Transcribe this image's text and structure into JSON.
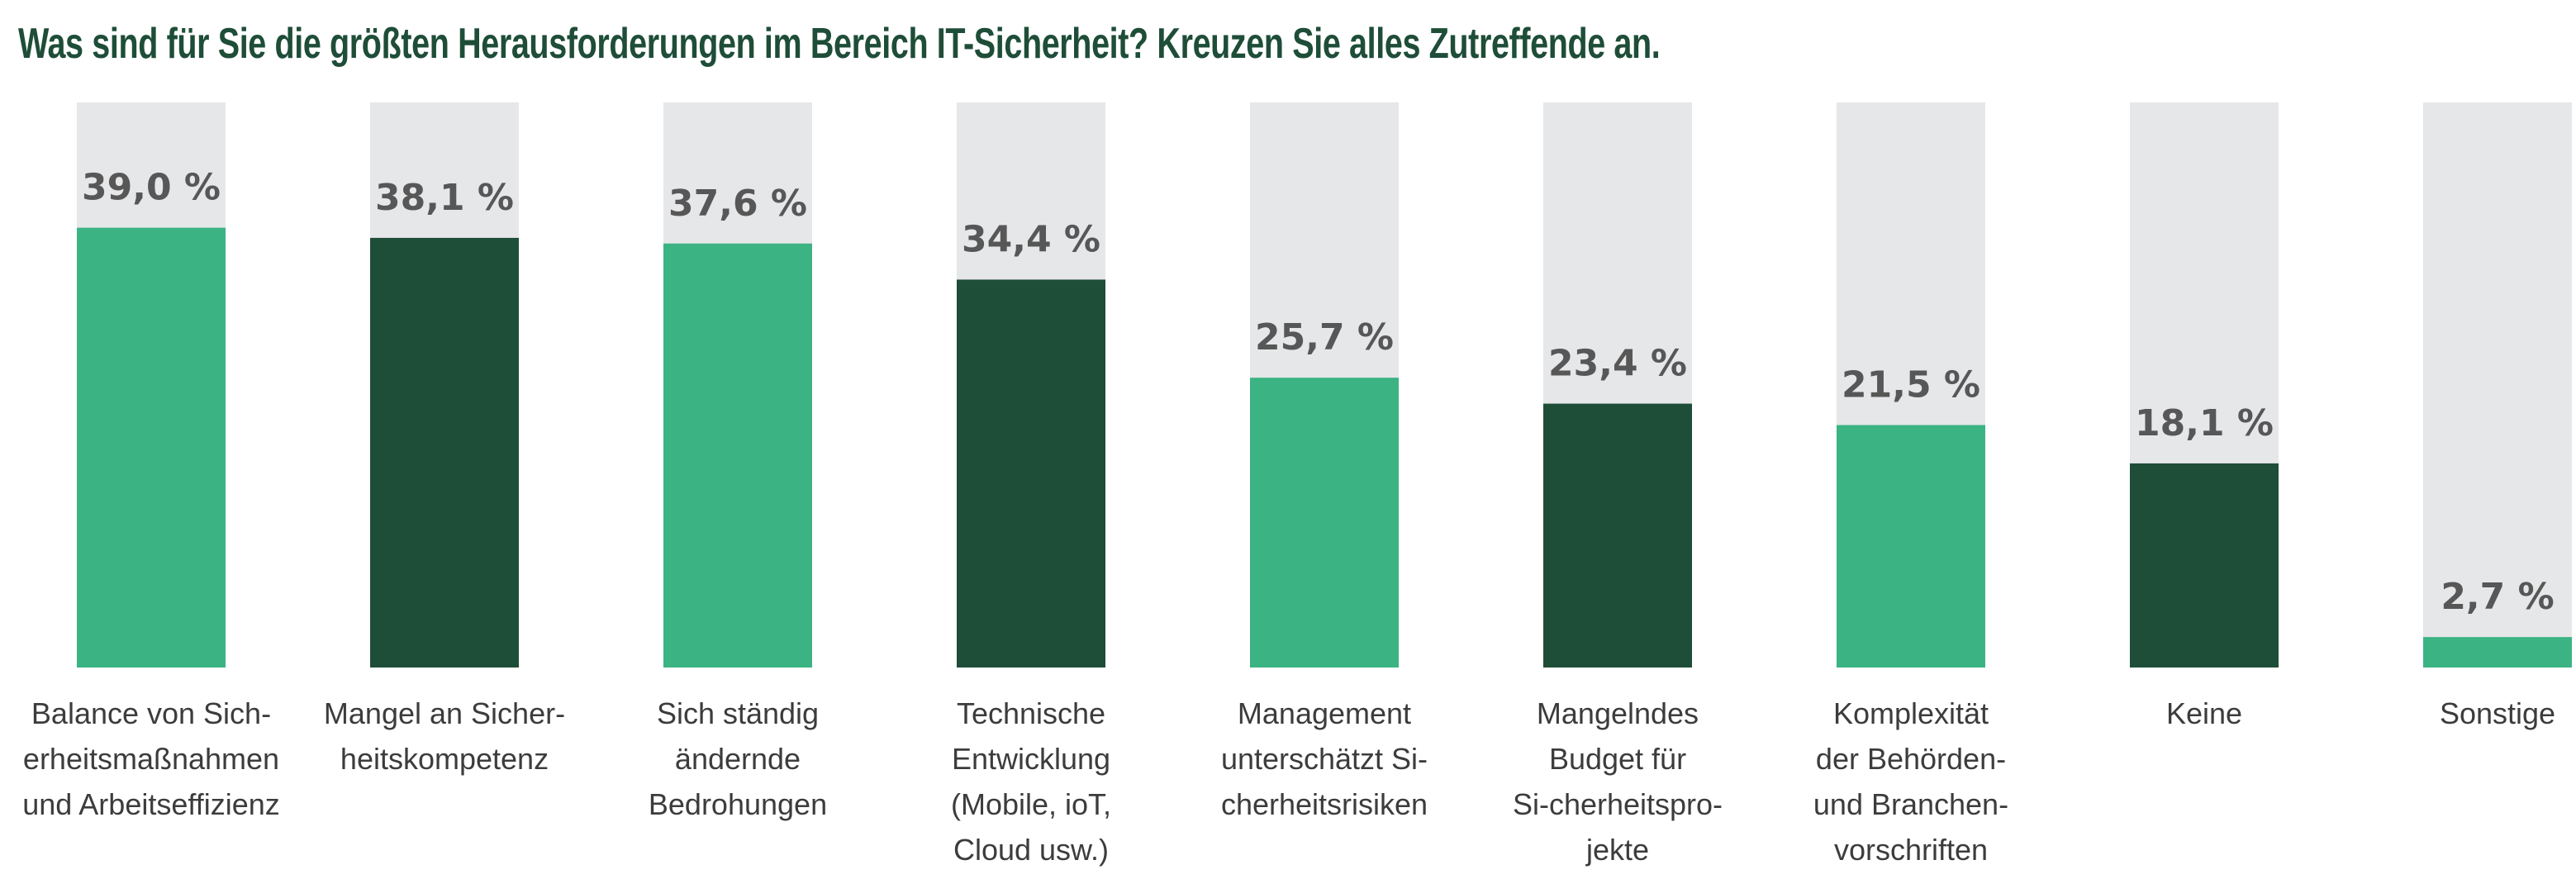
{
  "chart_data": {
    "type": "bar",
    "title": "Was sind für Sie die größten Herausforderungen im Bereich IT-Sicherheit? Kreuzen Sie alles Zutreffende an.",
    "xlabel": "",
    "ylabel": "",
    "ylim": [
      0,
      50
    ],
    "unit": "%",
    "categories": [
      "Balance von Sich-erheitsmaßnahmen und Arbeitseffizienz",
      "Mangel an Sicher-heitskompetenz",
      "Sich ständig ändernde Bedrohungen",
      "Technische Entwicklung (Mobile, ioT, Cloud usw.)",
      "Management unterschätzt Si-cherheitsrisiken",
      "Mangelndes Budget für Si-cherheitspro-jekte",
      "Komplexität der Behörden- und Branchen-vorschriften",
      "Keine",
      "Sonstige"
    ],
    "category_lines": [
      [
        "Balance von Sich-",
        "erheitsmaßnahmen",
        "und Arbeitseffizienz"
      ],
      [
        "Mangel an Sicher-",
        "heitskompetenz"
      ],
      [
        "Sich ständig",
        "ändernde",
        "Bedrohungen"
      ],
      [
        "Technische",
        "Entwicklung",
        "(Mobile, ioT,",
        "Cloud usw.)"
      ],
      [
        "Management",
        "unterschätzt Si-",
        "cherheitsrisiken"
      ],
      [
        "Mangelndes",
        "Budget für",
        "Si-cherheitspro-",
        "jekte"
      ],
      [
        "Komplexität",
        "der Behörden-",
        "und Branchen-",
        "vorschriften"
      ],
      [
        "Keine"
      ],
      [
        "Sonstige"
      ]
    ],
    "values": [
      39.0,
      38.1,
      37.6,
      34.4,
      25.7,
      23.4,
      21.5,
      18.1,
      2.7
    ],
    "value_labels": [
      "39,0 %",
      "38,1 %",
      "37,6 %",
      "34,4 %",
      "25,7 %",
      "23,4 %",
      "21,5 %",
      "18,1 %",
      "2,7 %"
    ],
    "bar_colors": [
      "#3bb383",
      "#1e4d38",
      "#3bb383",
      "#1e4d38",
      "#3bb383",
      "#1e4d38",
      "#3bb383",
      "#1e4d38",
      "#3bb383"
    ],
    "track_color": "#e6e7e9",
    "value_label_color": "#575757",
    "title_color": "#1e4d38",
    "grid": false,
    "legend": "none"
  }
}
